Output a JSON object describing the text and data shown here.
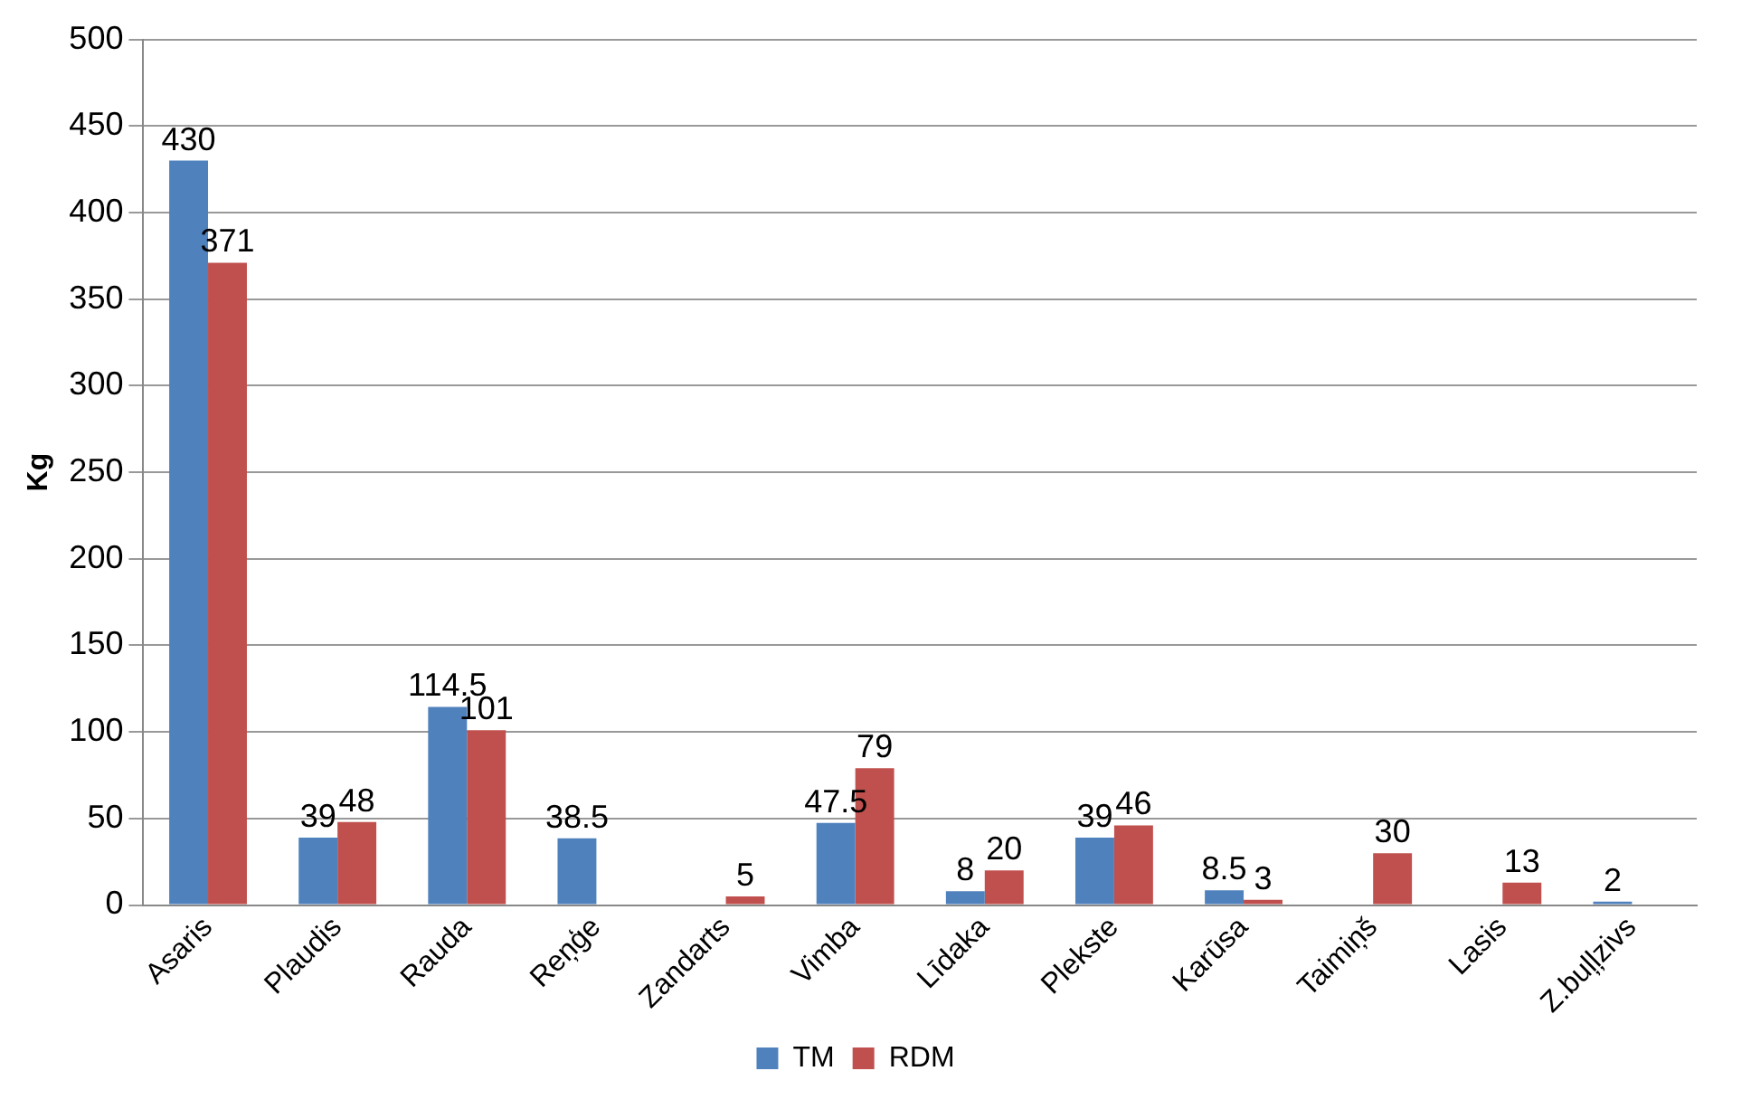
{
  "chart_data": {
    "type": "bar",
    "ylabel": "Kg",
    "categories": [
      "Asaris",
      "Plaudis",
      "Rauda",
      "Reņģe",
      "Zandarts",
      "Vimba",
      "Līdaka",
      "Plekste",
      "Karūsa",
      "Taimiņš",
      "Lasis",
      "Z.buļļzivs"
    ],
    "series": [
      {
        "name": "TM",
        "color": "#4f81bd",
        "values": [
          430,
          39,
          114.5,
          38.5,
          null,
          47.5,
          8,
          39,
          8.5,
          null,
          null,
          2
        ]
      },
      {
        "name": "RDM",
        "color": "#c0504d",
        "values": [
          371,
          48,
          101,
          null,
          5,
          79,
          20,
          46,
          3,
          30,
          13,
          null
        ]
      }
    ],
    "ylim": [
      0,
      500
    ],
    "yticks": [
      0,
      50,
      100,
      150,
      200,
      250,
      300,
      350,
      400,
      450,
      500
    ],
    "grid": "y",
    "legend": "bottom",
    "data_labels": true
  }
}
